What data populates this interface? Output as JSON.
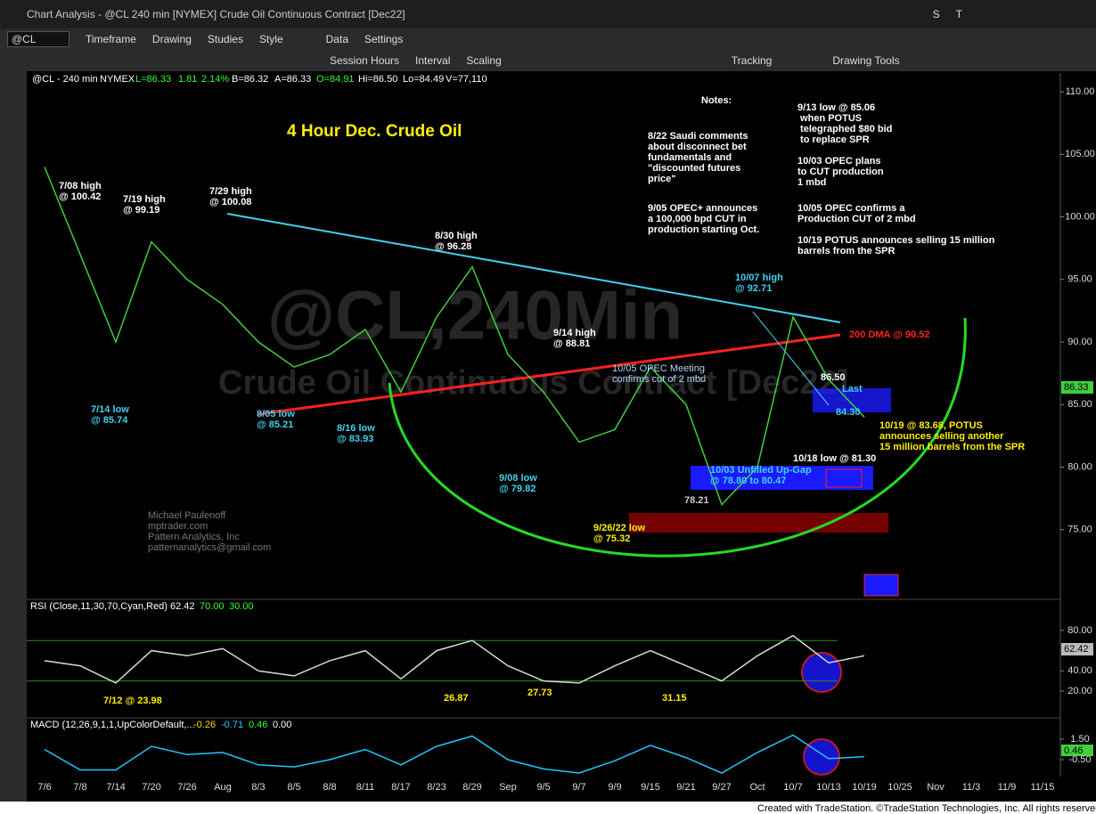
{
  "window": {
    "title": "Chart Analysis - @CL 240 min [NYMEX] Crude Oil Continuous Contract [Dec22]",
    "buttons": [
      "S",
      "T"
    ],
    "symbol": "@CL",
    "toolbar": [
      "Timeframe",
      "Drawing",
      "Studies",
      "Style",
      "Data",
      "Settings"
    ],
    "toolbar2": [
      "Session Hours",
      "Interval",
      "Scaling",
      "Tracking",
      "Drawing Tools"
    ]
  },
  "watermark": [
    "@CL,240Min",
    "Crude Oil Continuous Contract [Dec22]"
  ],
  "header": [
    "@CL - 240 min",
    "NYMEX",
    "L=86.33",
    "1.81",
    "2.14%",
    "B=86.32",
    "A=86.33",
    "O=84.91",
    "Hi=86.50",
    "Lo=84.49",
    "V=77,110"
  ],
  "annotations": [
    "7/08 high\n@ 100.42",
    "7/19 high\n@ 99.19",
    "7/29 high\n@ 100.08",
    "8/30 high\n@ 96.28",
    "9/14 high\n@ 88.81",
    "10/07 high\n@ 92.71",
    "7/14 low\n@ 85.74",
    "8/05 low\n@ 85.21",
    "8/16 low\n@ 83.93",
    "9/08 low\n@ 79.82",
    "9/26/22 low\n@ 75.32",
    "10/05 OPEC Meeting\nconfirms cut of 2 mbd",
    "10/03 Unfilled Up-Gap\n@ 78.80 to 80.47",
    "78.21",
    "86.50",
    "Last",
    "84.30",
    "10/18 low @ 81.30",
    "10/19 @ 83.68, POTUS\nannounces selling another\n15 million barrels from the SPR",
    "200 DMA @ 90.52",
    "Notes:",
    "8/22 Saudi comments\nabout disconnect bet\nfundamentals and\n\"discounted futures\nprice\"",
    "9/05 OPEC+ announces\na 100,000 bpd CUT in\nproduction starting Oct.",
    "9/13 low @ 85.06\n when POTUS\n telegraphed $80 bid\n to replace SPR",
    "10/03 OPEC plans\nto CUT production\n1 mbd",
    "10/05 OPEC confirms a\nProduction CUT of 2 mbd",
    "10/19 POTUS announces selling 15 million\nbarrels from the SPR",
    "Michael Paulenoff\nmptrader.com\nPattern Analytics, Inc\npatternanalytics@gmail.com",
    "7/12 @ 23.98",
    "26.87",
    "27.73",
    "31.15"
  ],
  "footer": "Created with TradeStation. ©TradeStation Technologies, Inc. All rights reserved.",
  "chart_data": [
    {
      "type": "line",
      "title": "4 Hour Dec. Crude Oil",
      "color": "#3fcf3f",
      "categories": [
        "7/6",
        "7/8",
        "7/14",
        "7/20",
        "7/26",
        "Aug",
        "8/3",
        "8/5",
        "8/8",
        "8/11",
        "8/17",
        "8/23",
        "8/29",
        "Sep",
        "9/5",
        "9/7",
        "9/9",
        "9/15",
        "9/21",
        "9/27",
        "Oct",
        "10/7",
        "10/13",
        "10/19",
        "10/25",
        "Nov",
        "11/3",
        "11/9",
        "11/15"
      ],
      "values": [
        104,
        97,
        90,
        98,
        95,
        93,
        90,
        88,
        89,
        91,
        86,
        92,
        96,
        89,
        86,
        82,
        83,
        88,
        85,
        77,
        80,
        92,
        87,
        84,
        null,
        null,
        null,
        null,
        null
      ],
      "ylim": [
        69.5,
        111.5
      ],
      "yticks": [
        {
          "value": 75,
          "label": "75.00"
        },
        {
          "value": 80,
          "label": "80.00"
        },
        {
          "value": 85,
          "label": "85.00"
        },
        {
          "value": 90,
          "label": "90.00"
        },
        {
          "value": 95,
          "label": "95.00"
        },
        {
          "value": 100,
          "label": "100.00"
        },
        {
          "value": 105,
          "label": "105.00"
        },
        {
          "value": 110,
          "label": "110.00"
        }
      ],
      "last": {
        "value": 86.33,
        "label": "86.33"
      },
      "grid": false
    },
    {
      "type": "line",
      "title": "RSI (Close,11,30,70,Cyan,Red)",
      "color": "#d8d8d8",
      "values": [
        50,
        45,
        28,
        60,
        55,
        62,
        40,
        35,
        50,
        60,
        32,
        60,
        70,
        45,
        30,
        28,
        45,
        60,
        45,
        30,
        55,
        75,
        48,
        55,
        null,
        null,
        null,
        null,
        null
      ],
      "ylim": [
        -5.6,
        109
      ],
      "yticks": [
        {
          "value": 20,
          "label": "20.00"
        },
        {
          "value": 40,
          "label": "40.00"
        },
        {
          "value": 80,
          "label": "80.00"
        }
      ],
      "levels": [
        {
          "value": 70,
          "label": "70.00"
        },
        {
          "value": 30,
          "label": "30.00"
        }
      ],
      "last": {
        "value": 62.42,
        "label": "62.42"
      },
      "grid": false
    },
    {
      "type": "line",
      "title": "MACD (12,26,9,1,1,UpColorDefault,...",
      "color": "#1ec8ff",
      "values": [
        0.5,
        -1.5,
        -1.5,
        0.8,
        0,
        0.2,
        -1,
        -1.2,
        -0.5,
        0.5,
        -1,
        0.8,
        1.8,
        -0.5,
        -1.4,
        -1.8,
        -0.6,
        0.9,
        -0.3,
        -1.8,
        0.2,
        1.9,
        -0.4,
        -0.2,
        null,
        null,
        null,
        null,
        null
      ],
      "ylim": [
        -2.15,
        3.41
      ],
      "yticks": [
        {
          "value": 1.5,
          "label": "1.50"
        },
        {
          "value": -0.5,
          "label": "-0.50"
        }
      ],
      "readouts": [
        "-0.26",
        "-0.71",
        "0.46",
        "0.00"
      ],
      "grid": false
    }
  ]
}
